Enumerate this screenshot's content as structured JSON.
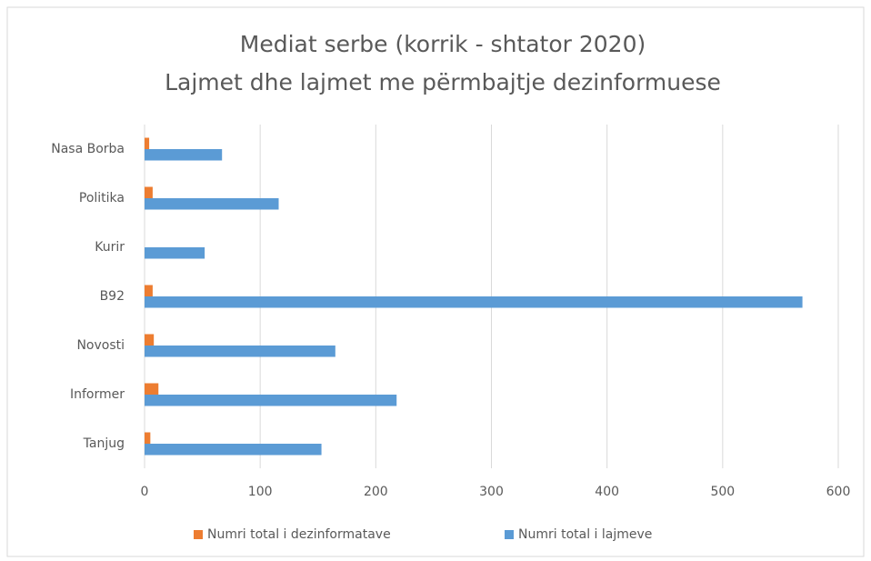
{
  "chart_data": {
    "type": "hbar",
    "title": "Mediat serbe (korrik  - shtator 2020)",
    "subtitle": "Lajmet dhe lajmet me përmbajtje dezinformuese",
    "categories": [
      "Nasa Borba",
      "Politika",
      "Kurir",
      "B92",
      "Novosti",
      "Informer",
      "Tanjug"
    ],
    "series": [
      {
        "name": "Numri total i dezinformatave",
        "color": "#ed7d31",
        "values": [
          4,
          7,
          0,
          7,
          8,
          12,
          5
        ]
      },
      {
        "name": "Numri total i lajmeve",
        "color": "#5b9bd5",
        "values": [
          67,
          116,
          52,
          569,
          165,
          218,
          153
        ]
      }
    ],
    "xlim": [
      0,
      600
    ],
    "xticks": [
      0,
      100,
      200,
      300,
      400,
      500,
      600
    ],
    "grid": true,
    "legend": "bottom"
  }
}
